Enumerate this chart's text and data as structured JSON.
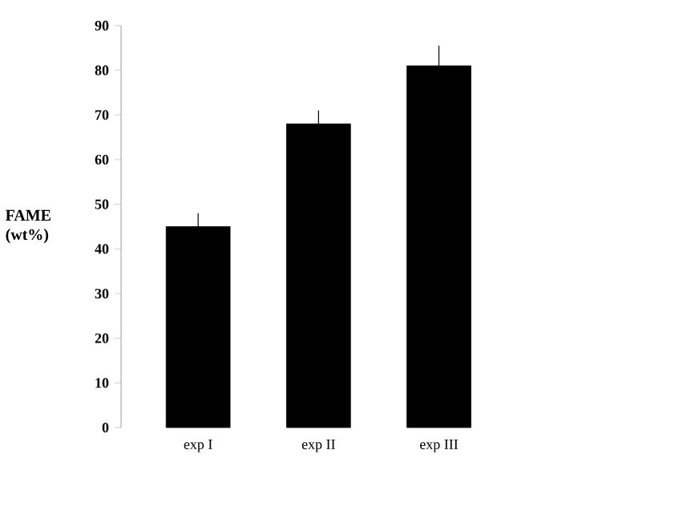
{
  "chart_data": {
    "type": "bar",
    "ylabel": "FAME (wt%)",
    "categories": [
      "exp I",
      "exp II",
      "exp III"
    ],
    "values": [
      45,
      68,
      81
    ],
    "errors": [
      3,
      3,
      4.5
    ],
    "color": "#000000",
    "ylim": [
      0,
      90
    ],
    "yticks": [
      0,
      10,
      20,
      30,
      40,
      50,
      60,
      70,
      80,
      90
    ],
    "grid": false
  }
}
